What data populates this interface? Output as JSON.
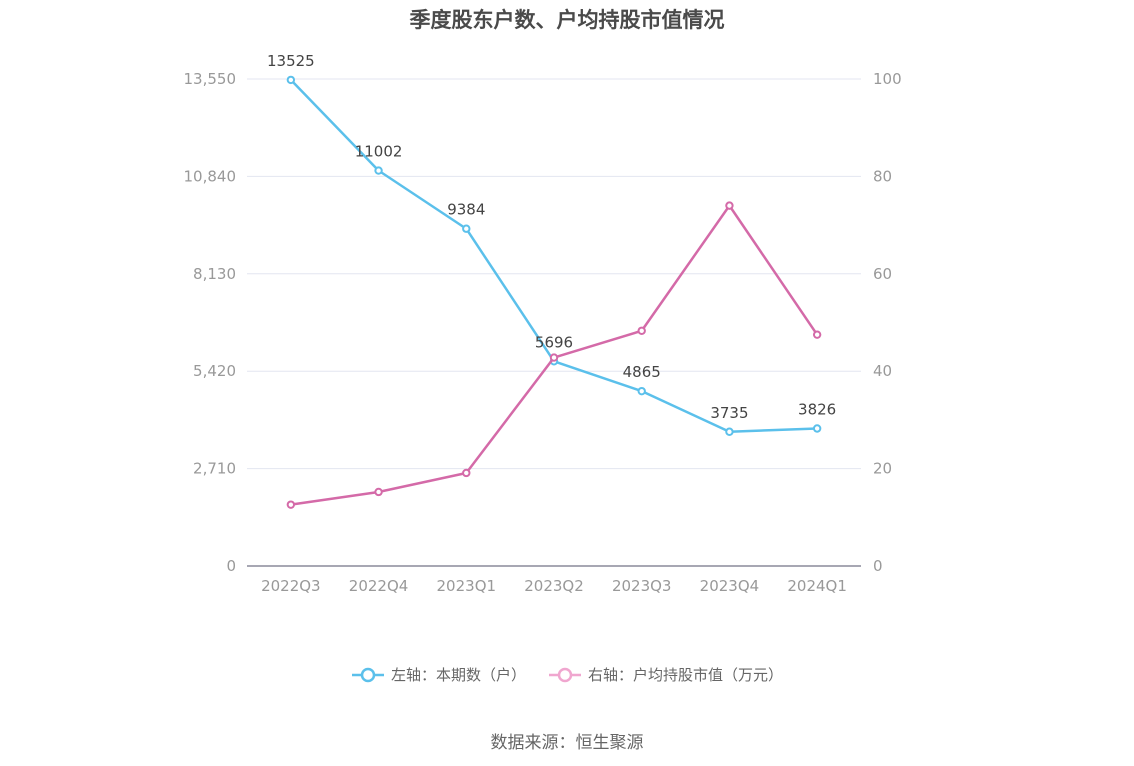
{
  "chart_data": {
    "type": "line",
    "title": "季度股东户数、户均持股市值情况",
    "categories": [
      "2022Q3",
      "2022Q4",
      "2023Q1",
      "2023Q2",
      "2023Q3",
      "2023Q4",
      "2024Q1"
    ],
    "left_axis": {
      "ticks": [
        "0",
        "2,710",
        "5,420",
        "8,130",
        "10,840",
        "13,550"
      ],
      "min": 0,
      "max": 13550
    },
    "right_axis": {
      "ticks": [
        "0",
        "20",
        "40",
        "60",
        "80",
        "100"
      ],
      "min": 0,
      "max": 100
    },
    "series": [
      {
        "name": "左轴：本期数（户）",
        "axis": "left",
        "color": "#5bc0eb",
        "values": [
          13525,
          11002,
          9384,
          5696,
          4865,
          3735,
          3826
        ],
        "labels": [
          "13525",
          "11002",
          "9384",
          "5696",
          "4865",
          "3735",
          "3826"
        ]
      },
      {
        "name": "右轴：户均持股市值（万元）",
        "axis": "right",
        "color": "#d46aa8",
        "values": [
          12.6,
          15.2,
          19.1,
          42.8,
          48.3,
          74.0,
          47.5
        ]
      }
    ],
    "grid": true,
    "legend_position": "bottom"
  },
  "legend": {
    "left_label": "左轴：本期数（户）",
    "right_label": "右轴：户均持股市值（万元）",
    "left_color": "#5bc0eb",
    "right_color": "#f0a6cf"
  },
  "source": "数据来源：恒生聚源"
}
